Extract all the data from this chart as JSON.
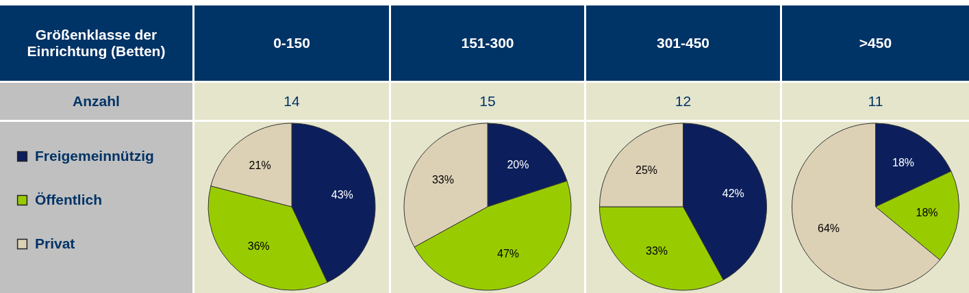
{
  "chart_data": [
    {
      "type": "other",
      "title": "Größenklasse der Einrichtung (Betten)",
      "annotations": [
        "Anzahl"
      ]
    },
    {
      "type": "pie",
      "title": "0-150",
      "subtitle": "14",
      "categories": [
        "Freigemeinnützig",
        "Öffentlich",
        "Privat"
      ],
      "values": [
        43,
        36,
        21
      ],
      "value_labels": [
        "43%",
        "36%",
        "21%"
      ],
      "colors": [
        "#0c1f5c",
        "#99cc00",
        "#ddd1b5"
      ],
      "legend": "left"
    },
    {
      "type": "pie",
      "title": "151-300",
      "subtitle": "15",
      "categories": [
        null,
        null,
        null
      ],
      "values": [
        20,
        47,
        33
      ],
      "value_labels": [
        "20%",
        "47%",
        "33%"
      ],
      "colors": [
        "#0c1f5c",
        "#99cc00",
        "#ddd1b5"
      ]
    },
    {
      "type": "pie",
      "title": "301-450",
      "subtitle": "12",
      "categories": [
        null,
        null,
        null
      ],
      "values": [
        42,
        33,
        25
      ],
      "value_labels": [
        "42%",
        "33%",
        "25%"
      ],
      "colors": [
        "#0c1f5c",
        "#99cc00",
        "#ddd1b5"
      ]
    },
    {
      "type": "pie",
      "title": ">450",
      "subtitle": "11",
      "categories": [
        null,
        null,
        null
      ],
      "values": [
        18,
        18,
        64
      ],
      "value_labels": [
        "18%",
        "18%",
        "64%"
      ],
      "colors": [
        "#0c1f5c",
        "#99cc00",
        "#ddd1b5"
      ]
    }
  ]
}
